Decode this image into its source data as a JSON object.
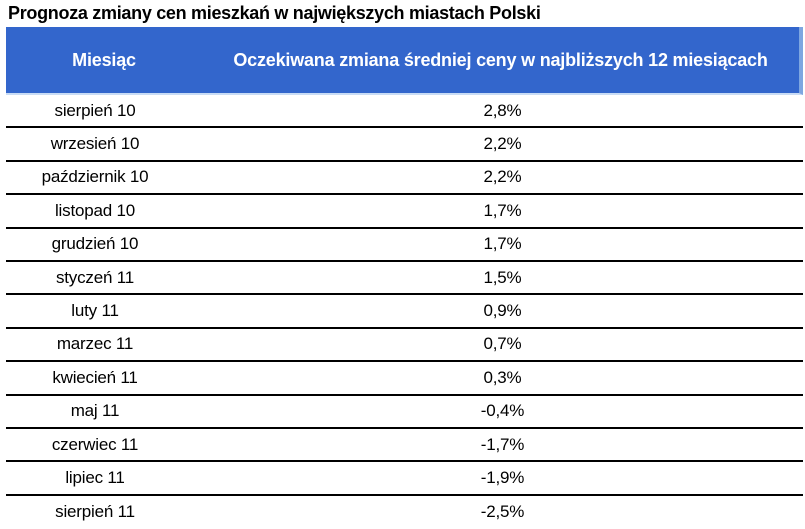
{
  "page": {
    "title": "Prognoza zmiany cen mieszkań w największych miastach Polski"
  },
  "table": {
    "header": {
      "month_label": "Miesiąc",
      "value_label": "Oczekiwana zmiana średniej ceny w najbliższych 12 miesiącach"
    },
    "rows": [
      {
        "month": "sierpień 10",
        "value": "2,8%"
      },
      {
        "month": "wrzesień 10",
        "value": "2,2%"
      },
      {
        "month": "październik 10",
        "value": "2,2%"
      },
      {
        "month": "listopad 10",
        "value": "1,7%"
      },
      {
        "month": "grudzień 10",
        "value": "1,7%"
      },
      {
        "month": "styczeń 11",
        "value": "1,5%"
      },
      {
        "month": "luty 11",
        "value": "0,9%"
      },
      {
        "month": "marzec 11",
        "value": "0,7%"
      },
      {
        "month": "kwiecień 11",
        "value": "0,3%"
      },
      {
        "month": "maj 11",
        "value": "-0,4%"
      },
      {
        "month": "czerwiec 11",
        "value": "-1,7%"
      },
      {
        "month": "lipiec 11",
        "value": "-1,9%"
      },
      {
        "month": "sierpień 11",
        "value": "-2,5%"
      }
    ]
  },
  "colors": {
    "header_bg": "#3366CC",
    "header_text": "#FFFFFF",
    "header_edge_right": "#7EA6E0",
    "header_edge_bottom": "#C9DCF5",
    "row_separator": "#000000",
    "body_text": "#000000",
    "background": "#FFFFFF"
  },
  "chart_data": {
    "type": "table",
    "title": "Prognoza zmiany cen mieszkań w największych miastach Polski",
    "columns": [
      "Miesiąc",
      "Oczekiwana zmiana średniej ceny w najbliższych 12 miesiącach"
    ],
    "categories": [
      "sierpień 10",
      "wrzesień 10",
      "październik 10",
      "listopad 10",
      "grudzień 10",
      "styczeń 11",
      "luty 11",
      "marzec 11",
      "kwiecień 11",
      "maj 11",
      "czerwiec 11",
      "lipiec 11",
      "sierpień 11"
    ],
    "values": [
      2.8,
      2.2,
      2.2,
      1.7,
      1.7,
      1.5,
      0.9,
      0.7,
      0.3,
      -0.4,
      -1.7,
      -1.9,
      -2.5
    ],
    "unit": "%",
    "value_display": [
      "2,8%",
      "2,2%",
      "2,2%",
      "1,7%",
      "1,7%",
      "1,5%",
      "0,9%",
      "0,7%",
      "0,3%",
      "-0,4%",
      "-1,7%",
      "-1,9%",
      "-2,5%"
    ]
  }
}
